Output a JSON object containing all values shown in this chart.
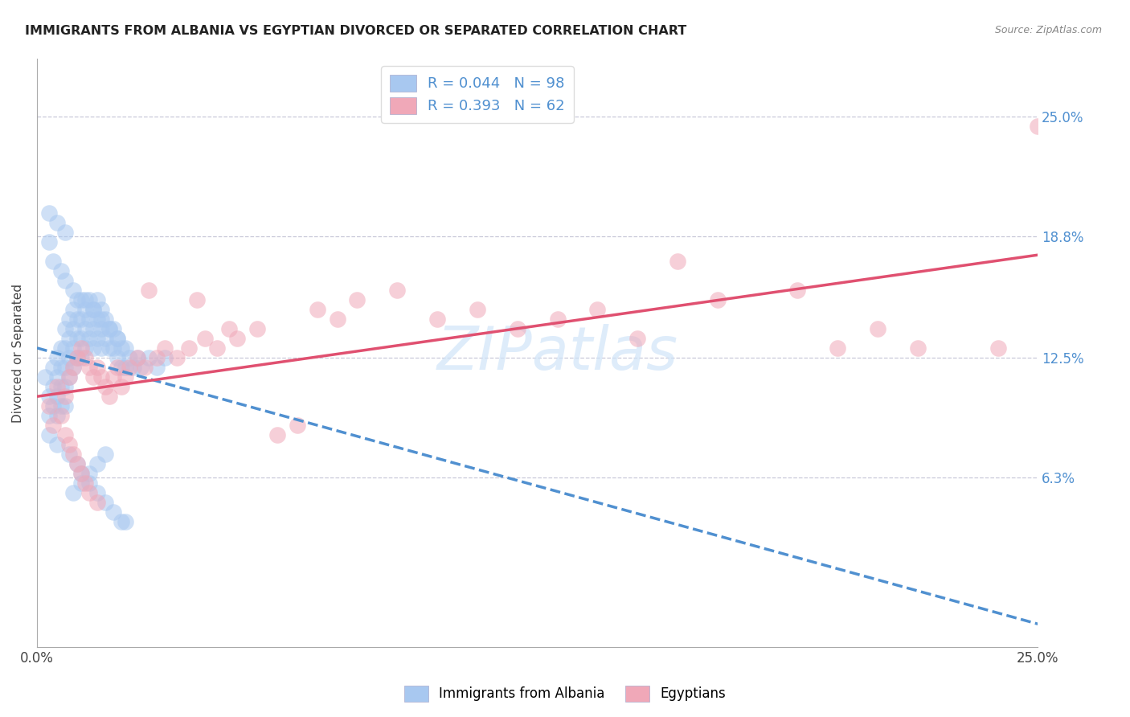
{
  "title": "IMMIGRANTS FROM ALBANIA VS EGYPTIAN DIVORCED OR SEPARATED CORRELATION CHART",
  "source": "Source: ZipAtlas.com",
  "ylabel": "Divorced or Separated",
  "ytick_labels": [
    "6.3%",
    "12.5%",
    "18.8%",
    "25.0%"
  ],
  "ytick_values": [
    0.063,
    0.125,
    0.188,
    0.25
  ],
  "xlim": [
    0.0,
    0.25
  ],
  "ylim": [
    -0.025,
    0.28
  ],
  "legend_line1": "R = 0.044   N = 98",
  "legend_line2": "R = 0.393   N = 62",
  "blue_scatter_color": "#a8c8f0",
  "pink_scatter_color": "#f0a8b8",
  "blue_line_color": "#5090d0",
  "pink_line_color": "#e05070",
  "watermark": "ZIPatlas",
  "background_color": "#ffffff",
  "grid_color": "#c8c8d8",
  "albania_x": [
    0.002,
    0.003,
    0.003,
    0.003,
    0.004,
    0.004,
    0.004,
    0.005,
    0.005,
    0.005,
    0.005,
    0.006,
    0.006,
    0.006,
    0.006,
    0.007,
    0.007,
    0.007,
    0.007,
    0.007,
    0.008,
    0.008,
    0.008,
    0.008,
    0.009,
    0.009,
    0.009,
    0.009,
    0.01,
    0.01,
    0.01,
    0.01,
    0.011,
    0.011,
    0.011,
    0.011,
    0.012,
    0.012,
    0.012,
    0.013,
    0.013,
    0.013,
    0.014,
    0.014,
    0.014,
    0.015,
    0.015,
    0.015,
    0.016,
    0.016,
    0.016,
    0.017,
    0.017,
    0.018,
    0.018,
    0.019,
    0.019,
    0.02,
    0.02,
    0.021,
    0.021,
    0.022,
    0.022,
    0.023,
    0.024,
    0.025,
    0.026,
    0.028,
    0.03,
    0.032,
    0.003,
    0.004,
    0.005,
    0.006,
    0.007,
    0.008,
    0.009,
    0.01,
    0.011,
    0.012,
    0.013,
    0.014,
    0.015,
    0.016,
    0.017,
    0.018,
    0.019,
    0.02,
    0.021,
    0.022,
    0.003,
    0.005,
    0.007,
    0.009,
    0.011,
    0.013,
    0.015,
    0.017
  ],
  "albania_y": [
    0.115,
    0.105,
    0.095,
    0.085,
    0.12,
    0.11,
    0.1,
    0.125,
    0.115,
    0.105,
    0.095,
    0.13,
    0.12,
    0.11,
    0.1,
    0.14,
    0.13,
    0.12,
    0.11,
    0.1,
    0.145,
    0.135,
    0.125,
    0.115,
    0.15,
    0.14,
    0.13,
    0.12,
    0.155,
    0.145,
    0.135,
    0.125,
    0.155,
    0.145,
    0.135,
    0.125,
    0.15,
    0.14,
    0.13,
    0.155,
    0.145,
    0.135,
    0.15,
    0.14,
    0.13,
    0.155,
    0.145,
    0.135,
    0.15,
    0.14,
    0.13,
    0.145,
    0.135,
    0.14,
    0.13,
    0.14,
    0.13,
    0.135,
    0.125,
    0.13,
    0.12,
    0.13,
    0.12,
    0.125,
    0.12,
    0.125,
    0.12,
    0.125,
    0.12,
    0.125,
    0.185,
    0.175,
    0.08,
    0.17,
    0.165,
    0.075,
    0.16,
    0.07,
    0.065,
    0.155,
    0.06,
    0.15,
    0.055,
    0.145,
    0.05,
    0.14,
    0.045,
    0.135,
    0.04,
    0.04,
    0.2,
    0.195,
    0.19,
    0.055,
    0.06,
    0.065,
    0.07,
    0.075
  ],
  "egypt_x": [
    0.003,
    0.004,
    0.005,
    0.006,
    0.007,
    0.007,
    0.008,
    0.008,
    0.009,
    0.009,
    0.01,
    0.01,
    0.011,
    0.011,
    0.012,
    0.012,
    0.013,
    0.013,
    0.014,
    0.015,
    0.015,
    0.016,
    0.017,
    0.018,
    0.019,
    0.02,
    0.021,
    0.022,
    0.023,
    0.025,
    0.027,
    0.028,
    0.03,
    0.032,
    0.035,
    0.038,
    0.04,
    0.042,
    0.045,
    0.048,
    0.05,
    0.055,
    0.06,
    0.065,
    0.07,
    0.075,
    0.08,
    0.09,
    0.1,
    0.11,
    0.12,
    0.13,
    0.14,
    0.15,
    0.17,
    0.19,
    0.21,
    0.22,
    0.24,
    0.25,
    0.16,
    0.2
  ],
  "egypt_y": [
    0.1,
    0.09,
    0.11,
    0.095,
    0.105,
    0.085,
    0.115,
    0.08,
    0.12,
    0.075,
    0.125,
    0.07,
    0.13,
    0.065,
    0.125,
    0.06,
    0.12,
    0.055,
    0.115,
    0.12,
    0.05,
    0.115,
    0.11,
    0.105,
    0.115,
    0.12,
    0.11,
    0.115,
    0.12,
    0.125,
    0.12,
    0.16,
    0.125,
    0.13,
    0.125,
    0.13,
    0.155,
    0.135,
    0.13,
    0.14,
    0.135,
    0.14,
    0.085,
    0.09,
    0.15,
    0.145,
    0.155,
    0.16,
    0.145,
    0.15,
    0.14,
    0.145,
    0.15,
    0.135,
    0.155,
    0.16,
    0.14,
    0.13,
    0.13,
    0.245,
    0.175,
    0.13
  ]
}
